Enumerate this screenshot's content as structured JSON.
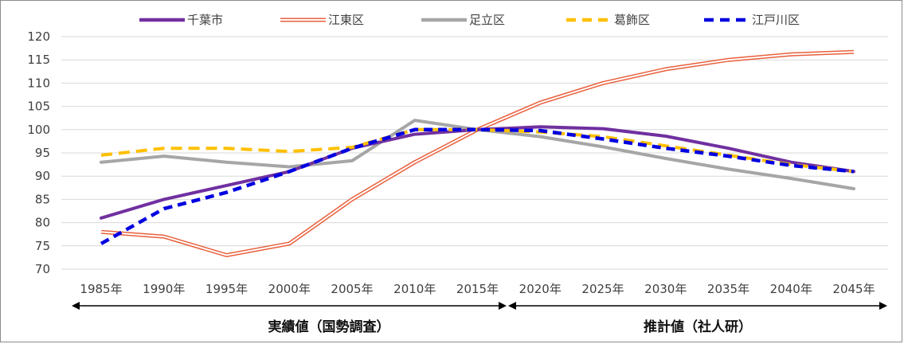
{
  "chart_data": {
    "type": "line",
    "title": "",
    "xlabel": "",
    "ylabel": "",
    "categories": [
      "1985年",
      "1990年",
      "1995年",
      "2000年",
      "2005年",
      "2010年",
      "2015年",
      "2020年",
      "2025年",
      "2030年",
      "2035年",
      "2040年",
      "2045年"
    ],
    "ylim": [
      70,
      120
    ],
    "yticks": [
      70,
      75,
      80,
      85,
      90,
      95,
      100,
      105,
      110,
      115,
      120
    ],
    "grid": true,
    "legend": "top",
    "series": [
      {
        "name": "千葉市",
        "color": "#7030a0",
        "style": "solid",
        "values": [
          81,
          85,
          88,
          91,
          96,
          99,
          100,
          100.6,
          100.2,
          98.6,
          96,
          93,
          91
        ]
      },
      {
        "name": "江東区",
        "color": "#e8603c",
        "style": "double",
        "values": [
          78,
          77,
          73,
          75.5,
          85,
          93,
          100,
          105.8,
          110,
          113,
          115,
          116.2,
          116.7
        ]
      },
      {
        "name": "足立区",
        "color": "#a6a6a6",
        "style": "solid",
        "values": [
          93,
          94.3,
          93,
          92,
          93.3,
          102,
          100,
          98.5,
          96.3,
          93.8,
          91.5,
          89.5,
          87.3
        ]
      },
      {
        "name": "葛飾区",
        "color": "#ffc000",
        "style": "dashed",
        "values": [
          94.5,
          96,
          96,
          95.3,
          96.2,
          100,
          100,
          99.5,
          98.5,
          96.5,
          94.5,
          92.5,
          91
        ]
      },
      {
        "name": "江戸川区",
        "color": "#0000e0",
        "style": "dashed",
        "values": [
          75.5,
          83,
          86.5,
          91,
          96,
          100,
          100,
          99.8,
          98,
          96,
          94.3,
          92.3,
          91
        ]
      }
    ],
    "periods": [
      {
        "label": "実績値（国勢調査）",
        "from": "1985年",
        "to": "2015年"
      },
      {
        "label": "推計値（社人研）",
        "from": "2020年",
        "to": "2045年"
      }
    ]
  }
}
